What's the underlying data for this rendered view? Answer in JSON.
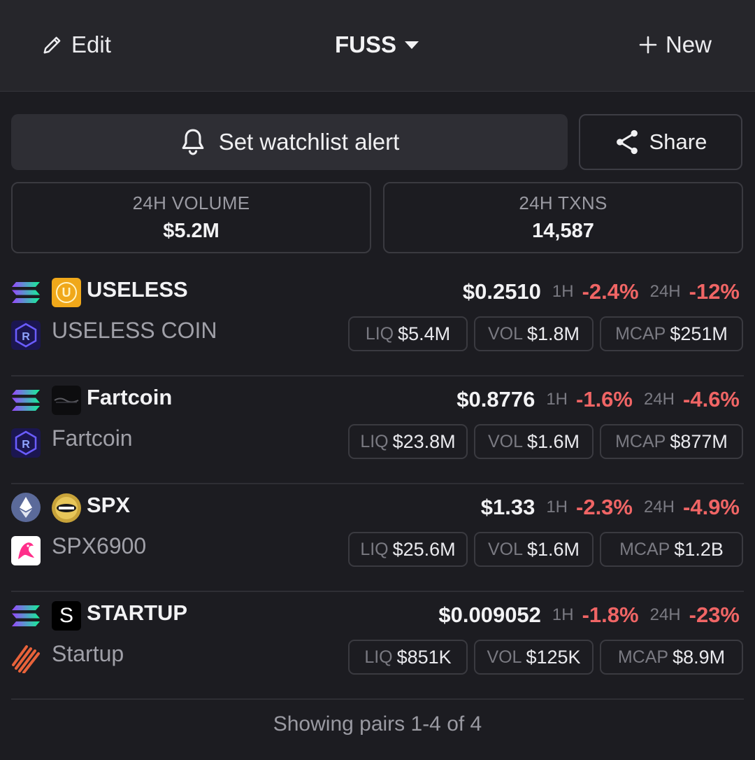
{
  "header": {
    "edit_label": "Edit",
    "title": "FUSS",
    "new_label": "New"
  },
  "actions": {
    "alert_label": "Set watchlist alert",
    "share_label": "Share"
  },
  "stats": {
    "volume_label": "24H VOLUME",
    "volume_value": "$5.2M",
    "txns_label": "24H TXNS",
    "txns_value": "14,587"
  },
  "labels": {
    "h1": "1H",
    "h24": "24H",
    "liq": "LIQ",
    "vol": "VOL",
    "mcap": "MCAP"
  },
  "pairs": [
    {
      "symbol": "USELESS",
      "name": "USELESS COIN",
      "price": "$0.2510",
      "change_1h": "-2.4%",
      "change_24h": "-12%",
      "liq": "$5.4M",
      "vol": "$1.8M",
      "mcap": "$251M",
      "token_glyph": "U",
      "chain_icon": "solana-icon",
      "dex_icon": "raydium-icon"
    },
    {
      "symbol": "Fartcoin",
      "name": "Fartcoin",
      "price": "$0.8776",
      "change_1h": "-1.6%",
      "change_24h": "-4.6%",
      "liq": "$23.8M",
      "vol": "$1.6M",
      "mcap": "$877M",
      "chain_icon": "solana-icon",
      "dex_icon": "raydium-icon"
    },
    {
      "symbol": "SPX",
      "name": "SPX6900",
      "price": "$1.33",
      "change_1h": "-2.3%",
      "change_24h": "-4.9%",
      "liq": "$25.6M",
      "vol": "$1.6M",
      "mcap": "$1.2B",
      "chain_icon": "ethereum-icon",
      "dex_icon": "uniswap-icon"
    },
    {
      "symbol": "STARTUP",
      "name": "Startup",
      "price": "$0.009052",
      "change_1h": "-1.8%",
      "change_24h": "-23%",
      "liq": "$851K",
      "vol": "$125K",
      "mcap": "$8.9M",
      "token_glyph": "S",
      "chain_icon": "solana-icon",
      "dex_icon": "startup-dex-icon"
    }
  ],
  "footer": {
    "text": "Showing pairs 1-4 of 4"
  },
  "colors": {
    "negative": "#f06565",
    "background": "#1c1c21",
    "header_bg": "#26262b"
  }
}
